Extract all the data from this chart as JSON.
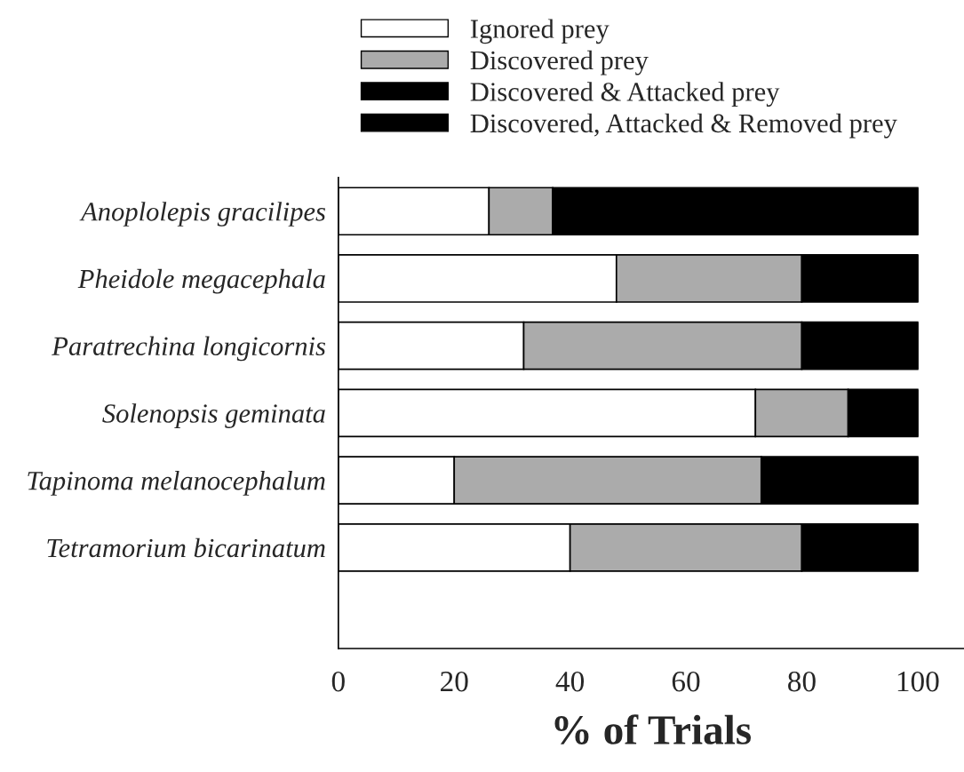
{
  "chart_data": {
    "type": "bar",
    "orientation": "horizontal",
    "stacked": true,
    "xlabel": "% of Trials",
    "categories": [
      "Anoplolepis gracilipes",
      "Pheidole megacephala",
      "Paratrechina longicornis",
      "Solenopsis geminata",
      "Tapinoma melanocephalum",
      "Tetramorium bicarinatum"
    ],
    "series": [
      {
        "name": "Ignored prey",
        "color": "#ffffff",
        "values": [
          26,
          48,
          32,
          72,
          20,
          40
        ]
      },
      {
        "name": "Discovered prey",
        "color": "#ababab",
        "values": [
          11,
          32,
          48,
          16,
          53,
          40
        ]
      },
      {
        "name": "Discovered & Attacked prey",
        "color": "#000000",
        "values": [
          63,
          20,
          20,
          12,
          27,
          20
        ]
      },
      {
        "name": "Discovered, Attacked & Removed prey",
        "color": "#000000",
        "values": [
          null,
          null,
          null,
          null,
          null,
          null
        ]
      }
    ],
    "xlim": [
      0,
      108
    ],
    "xticks": [
      0,
      20,
      40,
      60,
      80,
      100
    ],
    "grid": false,
    "legend": "top"
  }
}
